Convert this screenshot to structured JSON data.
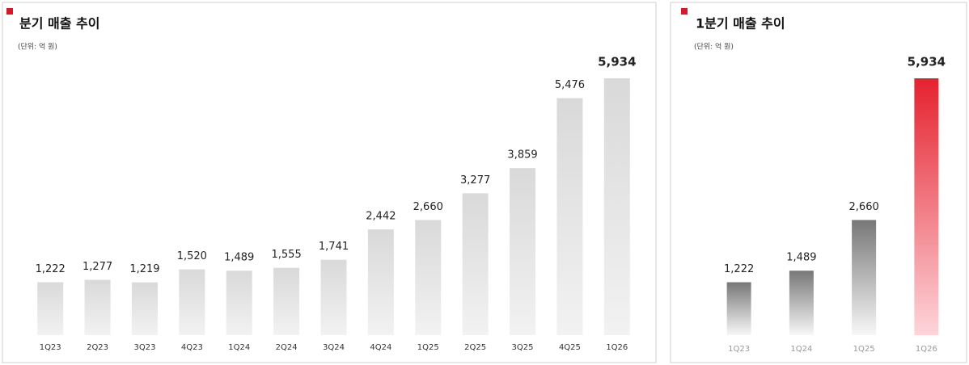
{
  "chart_data": [
    {
      "type": "bar",
      "title": "분기 매출 추이",
      "subtitle": "(단위: 억 원)",
      "categories": [
        "1Q23",
        "2Q23",
        "3Q23",
        "4Q23",
        "1Q24",
        "2Q24",
        "3Q24",
        "4Q24",
        "1Q25",
        "2Q25",
        "3Q25",
        "4Q25",
        "1Q26"
      ],
      "values": [
        1222,
        1277,
        1219,
        1520,
        1489,
        1555,
        1741,
        2442,
        2660,
        3277,
        3859,
        5476,
        5934
      ],
      "value_labels": [
        "1,222",
        "1,277",
        "1,219",
        "1,520",
        "1,489",
        "1,555",
        "1,741",
        "2,442",
        "2,660",
        "3,277",
        "3,859",
        "5,476",
        "5,934"
      ],
      "color": "#d9d9d9",
      "highlight_color": "#d9d9d9"
    },
    {
      "type": "bar",
      "title": "1분기 매출 추이",
      "subtitle": "(단위: 억 원)",
      "categories": [
        "1Q23",
        "1Q24",
        "1Q25",
        "1Q26"
      ],
      "values": [
        1222,
        1489,
        2660,
        5934
      ],
      "value_labels": [
        "1,222",
        "1,489",
        "2,660",
        "5,934"
      ],
      "color": "#777777",
      "highlight_color": "#e5222e"
    }
  ]
}
